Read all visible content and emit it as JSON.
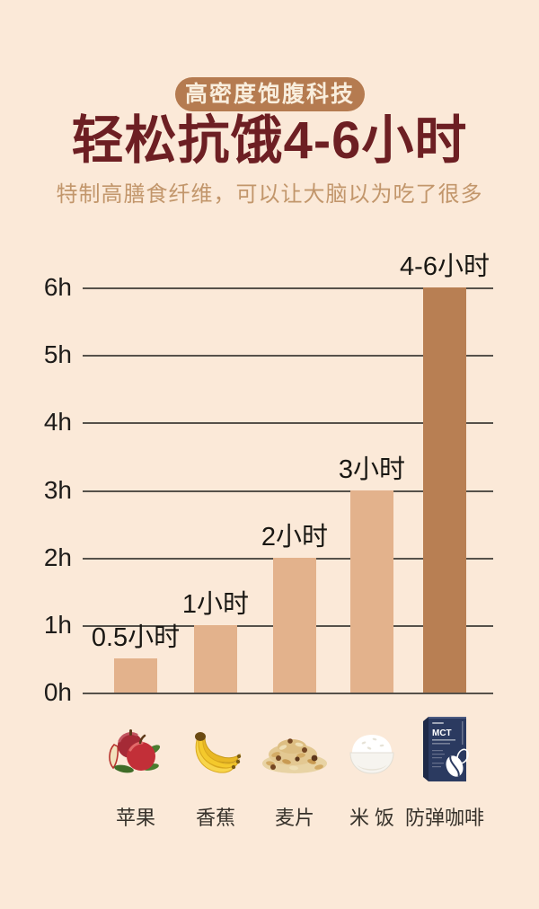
{
  "header": {
    "badge": "高密度饱腹科技",
    "title": "轻松抗饿4-6小时",
    "subtitle": "特制高膳食纤维，可以让大脑以为吃了很多"
  },
  "chart_data": {
    "type": "bar",
    "title": "",
    "xlabel": "",
    "ylabel": "",
    "ylim": [
      0,
      6
    ],
    "yticks": [
      "0h",
      "1h",
      "2h",
      "3h",
      "4h",
      "5h",
      "6h"
    ],
    "grid": true,
    "categories": [
      "苹果",
      "香蕉",
      "麦片",
      "米 饭",
      "防弹咖啡"
    ],
    "values": [
      0.5,
      1,
      2,
      3,
      6
    ],
    "value_labels": [
      "0.5小时",
      "1小时",
      "2小时",
      "3小时",
      "4-6小时"
    ],
    "highlighted_index": 4,
    "highlight_value_range": [
      4,
      6
    ],
    "icons": [
      "apple-icon",
      "banana-icon",
      "oats-icon",
      "rice-icon",
      "bulletproof-coffee-box-icon"
    ],
    "product_box_text": "MCT"
  },
  "colors": {
    "background": "#fbe9d8",
    "badge_bg": "#b57b50",
    "badge_text": "#f9eedd",
    "title": "#6d1f23",
    "subtitle": "#c2966b",
    "bar_light": "#e3b28c",
    "bar_highlight": "#b87f53",
    "gridline": "#56514a",
    "axis_text": "#1e1c1a",
    "food_label_text": "#36312a",
    "value_label_text": "#191713"
  }
}
